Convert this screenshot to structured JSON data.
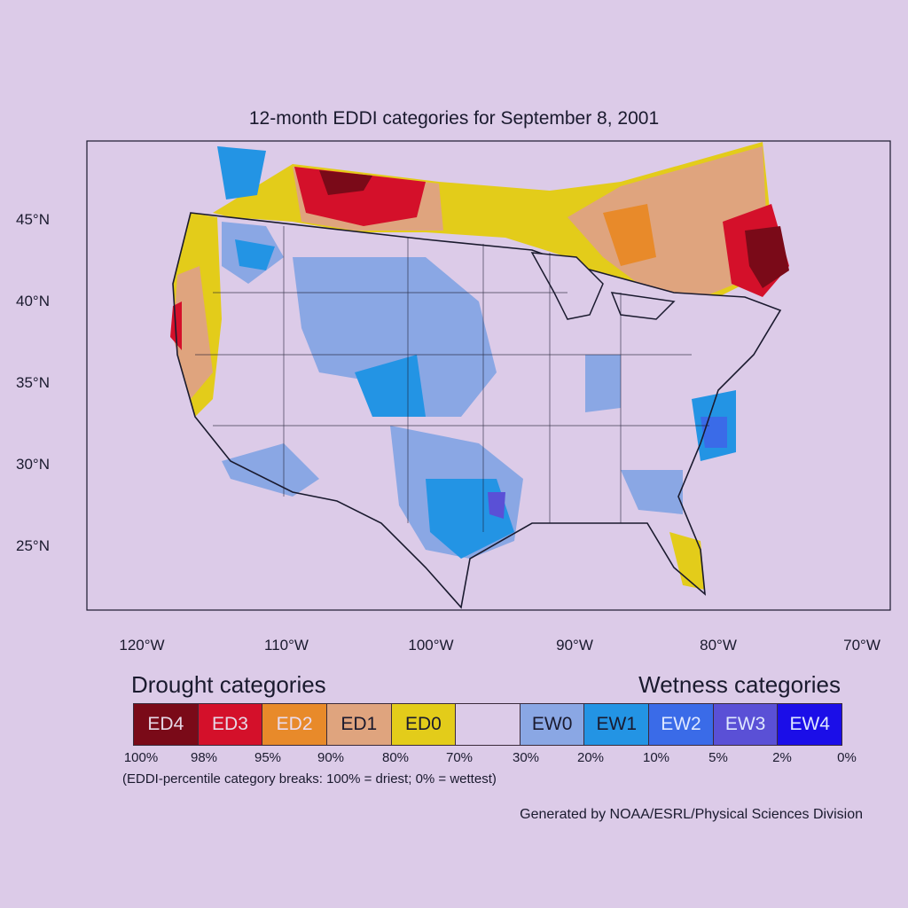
{
  "title": "12-month EDDI categories for September 8, 2001",
  "lat_labels": [
    "45°N",
    "40°N",
    "35°N",
    "30°N",
    "25°N"
  ],
  "lon_labels": [
    "120°W",
    "110°W",
    "100°W",
    "90°W",
    "80°W",
    "70°W"
  ],
  "legend": {
    "drought_heading": "Drought categories",
    "wetness_heading": "Wetness categories",
    "categories": [
      {
        "label": "ED4",
        "color": "#7a0a18",
        "text_color": "#e6d8e6"
      },
      {
        "label": "ED3",
        "color": "#d4102a",
        "text_color": "#e6d8e6"
      },
      {
        "label": "ED2",
        "color": "#e88a2a",
        "text_color": "#eadcee"
      },
      {
        "label": "ED1",
        "color": "#dfa47e",
        "text_color": "#1a1a2e"
      },
      {
        "label": "ED0",
        "color": "#e3cc1a",
        "text_color": "#1a1a2e"
      },
      {
        "label": "",
        "color": "#dccbe8",
        "text_color": "#1a1a2e"
      },
      {
        "label": "EW0",
        "color": "#8aa7e4",
        "text_color": "#1a1a2e"
      },
      {
        "label": "EW1",
        "color": "#2394e4",
        "text_color": "#1a1a2e"
      },
      {
        "label": "EW2",
        "color": "#3a6be8",
        "text_color": "#dfe8ff"
      },
      {
        "label": "EW3",
        "color": "#5a50d6",
        "text_color": "#dfe8ff"
      },
      {
        "label": "EW4",
        "color": "#1b0ee8",
        "text_color": "#dfe8ff"
      }
    ],
    "breaks": [
      "100%",
      "98%",
      "95%",
      "90%",
      "80%",
      "70%",
      "30%",
      "20%",
      "10%",
      "5%",
      "2%",
      "0%"
    ]
  },
  "note": "(EDDI-percentile category breaks: 100% = driest; 0% = wettest)",
  "credit": "Generated by NOAA/ESRL/Physical Sciences Division"
}
